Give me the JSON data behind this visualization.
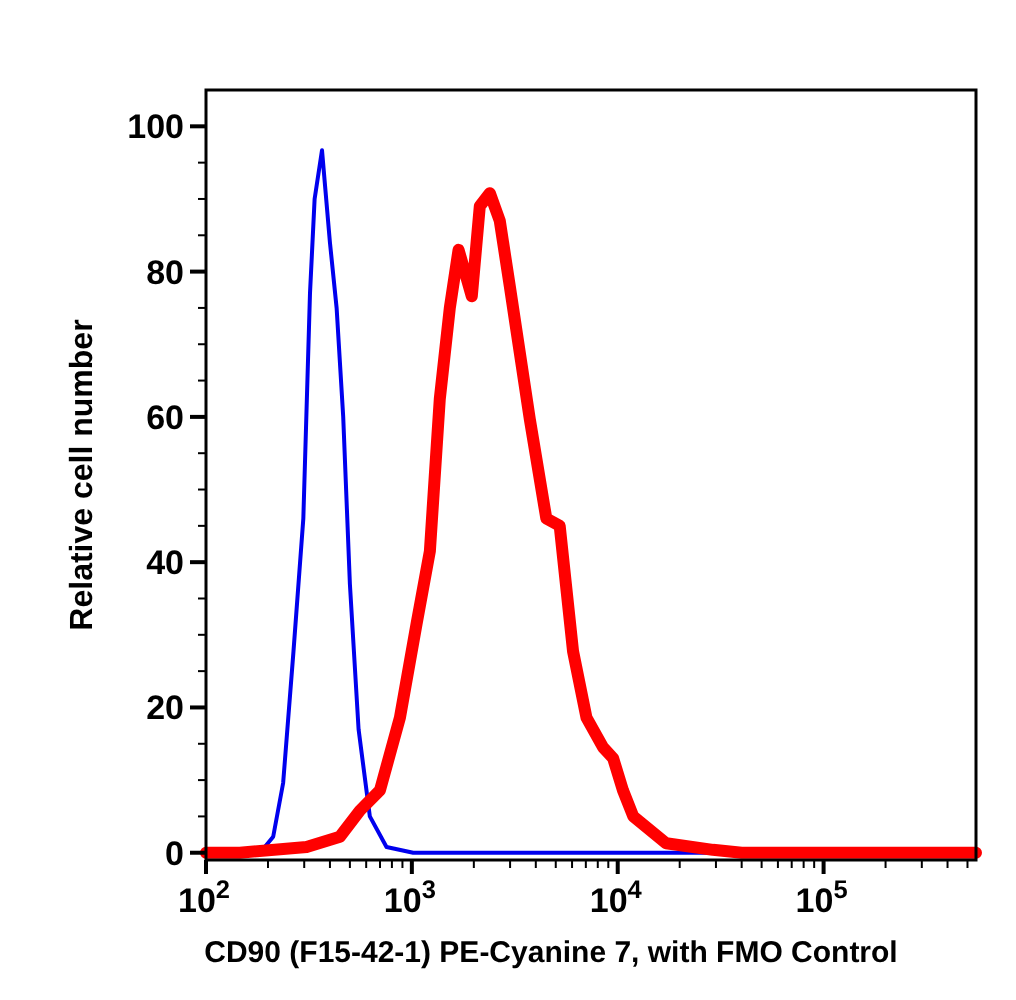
{
  "chart_data": {
    "type": "line",
    "xlabel": "CD90 (F15-42-1) PE-Cyanine 7, with FMO Control",
    "ylabel": "Relative cell number",
    "log": "x",
    "xlim": [
      100,
      550000
    ],
    "ylim": [
      -1,
      105
    ],
    "xticks": [
      {
        "value": 100,
        "label": "10$^{2}$"
      },
      {
        "value": 200,
        "label": null
      },
      {
        "value": 300,
        "label": null
      },
      {
        "value": 400,
        "label": null
      },
      {
        "value": 500,
        "label": null
      },
      {
        "value": 600,
        "label": null
      },
      {
        "value": 700,
        "label": null
      },
      {
        "value": 800,
        "label": null
      },
      {
        "value": 900,
        "label": null
      },
      {
        "value": 1000,
        "label": "10$^{3}$"
      },
      {
        "value": 2000,
        "label": null
      },
      {
        "value": 3000,
        "label": null
      },
      {
        "value": 4000,
        "label": null
      },
      {
        "value": 5000,
        "label": null
      },
      {
        "value": 6000,
        "label": null
      },
      {
        "value": 7000,
        "label": null
      },
      {
        "value": 8000,
        "label": null
      },
      {
        "value": 9000,
        "label": null
      },
      {
        "value": 10000,
        "label": "10$^{4}$"
      },
      {
        "value": 20000,
        "label": null
      },
      {
        "value": 30000,
        "label": null
      },
      {
        "value": 40000,
        "label": null
      },
      {
        "value": 50000,
        "label": null
      },
      {
        "value": 60000,
        "label": null
      },
      {
        "value": 70000,
        "label": null
      },
      {
        "value": 80000,
        "label": null
      },
      {
        "value": 90000,
        "label": null
      },
      {
        "value": 100000,
        "label": "10$^{5}$"
      },
      {
        "value": 200000,
        "label": null
      },
      {
        "value": 300000,
        "label": null
      },
      {
        "value": 400000,
        "label": null
      },
      {
        "value": 500000,
        "label": null
      }
    ],
    "yticks": [
      0,
      {
        "value": 5,
        "label": null
      },
      {
        "value": 10,
        "label": null
      },
      {
        "value": 15,
        "label": null
      },
      20,
      {
        "value": 25,
        "label": null
      },
      {
        "value": 30,
        "label": null
      },
      {
        "value": 35,
        "label": null
      },
      40,
      {
        "value": 45,
        "label": null
      },
      {
        "value": 50,
        "label": null
      },
      {
        "value": 55,
        "label": null
      },
      60,
      {
        "value": 65,
        "label": null
      },
      {
        "value": 70,
        "label": null
      },
      {
        "value": 75,
        "label": null
      },
      80,
      {
        "value": 85,
        "label": null
      },
      {
        "value": 90,
        "label": null
      },
      {
        "value": 95,
        "label": null
      },
      100
    ],
    "grid": false,
    "marker": "none",
    "line_style": "solid",
    "series": [
      {
        "color": "#0000ee",
        "x": [
          100,
          183,
          212,
          237,
          266,
          297,
          320,
          337,
          366,
          400,
          431,
          464,
          500,
          551,
          625,
          753,
          1015,
          550000
        ],
        "values": [
          0,
          0,
          2.2,
          9.6,
          27.7,
          46,
          77,
          90,
          96.7,
          84,
          75,
          60,
          37,
          17,
          5,
          0.8,
          0,
          0
        ]
      },
      {
        "color": "#ff0000",
        "x": [
          100,
          146,
          308,
          447,
          559,
          700,
          875,
          1054,
          1223,
          1367,
          1529,
          1686,
          1955,
          2138,
          2392,
          2673,
          2990,
          3345,
          3740,
          4500,
          5225,
          6070,
          7050,
          8490,
          9500,
          10600,
          11900,
          17200,
          29000,
          40000,
          550000
        ],
        "values": [
          0,
          0,
          0.8,
          2.2,
          5.8,
          8.6,
          18.6,
          31.5,
          41.5,
          62.5,
          75,
          83,
          76.6,
          89,
          90.8,
          87,
          78,
          68.8,
          59.7,
          46,
          45,
          27.7,
          18.6,
          14.5,
          13,
          8.6,
          5,
          1.3,
          0.4,
          0,
          0
        ]
      }
    ]
  }
}
